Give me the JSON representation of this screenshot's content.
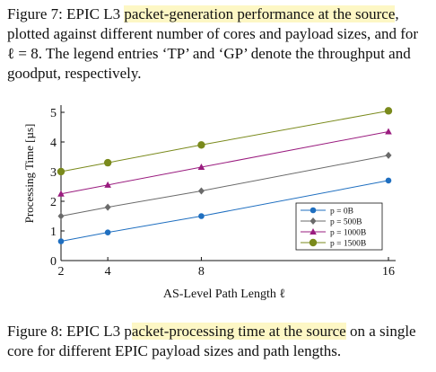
{
  "caption_top": {
    "parts": [
      "Figure 7: EPIC L3 ",
      "packet-generation performance at the source",
      ", plotted against different number of cores and payload sizes, and for ℓ = 8. The legend entries ‘TP’ and ‘GP’ denote the throughput and goodput, respectively."
    ]
  },
  "caption_bottom": {
    "parts": [
      "Figure 8: EPIC L3 p",
      "acket-processing time at the source",
      " on a single core for different EPIC payload sizes and path lengths."
    ]
  },
  "colors": {
    "highlight": "#fdf7c5",
    "axis": "#111111",
    "s0": "#1f6fc0",
    "s500": "#6a6a6a",
    "s1000": "#9a1c7f",
    "s1500": "#7a8a1c"
  },
  "chart_data": {
    "type": "line",
    "xlabel": "AS-Level Path Length ℓ",
    "ylabel": "Processing Time [µs]",
    "x": [
      2,
      4,
      8,
      16
    ],
    "xticks": [
      "2",
      "4",
      "8",
      "16"
    ],
    "yticks": [
      "0",
      "1",
      "2",
      "3",
      "4",
      "5"
    ],
    "xlim": [
      2,
      16
    ],
    "ylim": [
      0,
      5
    ],
    "grid": false,
    "legend_position": "bottom-right",
    "series": [
      {
        "name": "p = 0B",
        "marker": "circle-filled",
        "color_key": "s0",
        "values": [
          0.65,
          0.95,
          1.5,
          2.7
        ]
      },
      {
        "name": "p = 500B",
        "marker": "diamond",
        "color_key": "s500",
        "values": [
          1.5,
          1.8,
          2.35,
          3.55
        ]
      },
      {
        "name": "p = 1000B",
        "marker": "triangle",
        "color_key": "s1000",
        "values": [
          2.25,
          2.55,
          3.15,
          4.35
        ]
      },
      {
        "name": "p = 1500B",
        "marker": "circle-large",
        "color_key": "s1500",
        "values": [
          3.0,
          3.3,
          3.9,
          5.05
        ]
      }
    ]
  }
}
